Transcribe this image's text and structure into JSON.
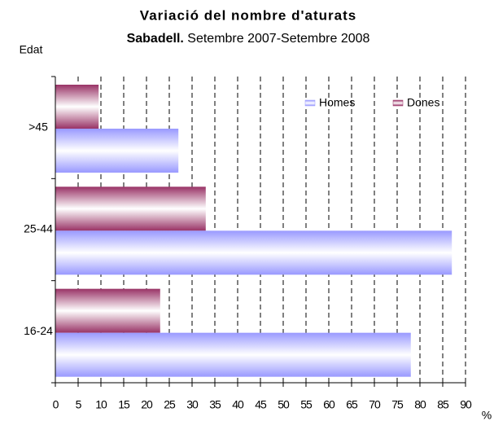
{
  "chart_data": {
    "type": "hbar",
    "title": "Variació del nombre d'aturats",
    "subtitle_bold": "Sabadell.",
    "subtitle": "Setembre 2007-Setembre 2008",
    "y_label": "Edat",
    "x_label": "%",
    "categories": [
      "16-24",
      "25-44",
      ">45"
    ],
    "series": [
      {
        "name": "Homes",
        "color": "#9999ff",
        "values": [
          78,
          87,
          27
        ]
      },
      {
        "name": "Dones",
        "color": "#993366",
        "values": [
          23,
          33,
          9.5
        ]
      }
    ],
    "xlim": [
      0,
      90
    ],
    "xticks": [
      0,
      5,
      10,
      15,
      20,
      25,
      30,
      35,
      40,
      45,
      50,
      55,
      60,
      65,
      70,
      75,
      80,
      85,
      90
    ],
    "grid": true,
    "legend": "top-right"
  }
}
